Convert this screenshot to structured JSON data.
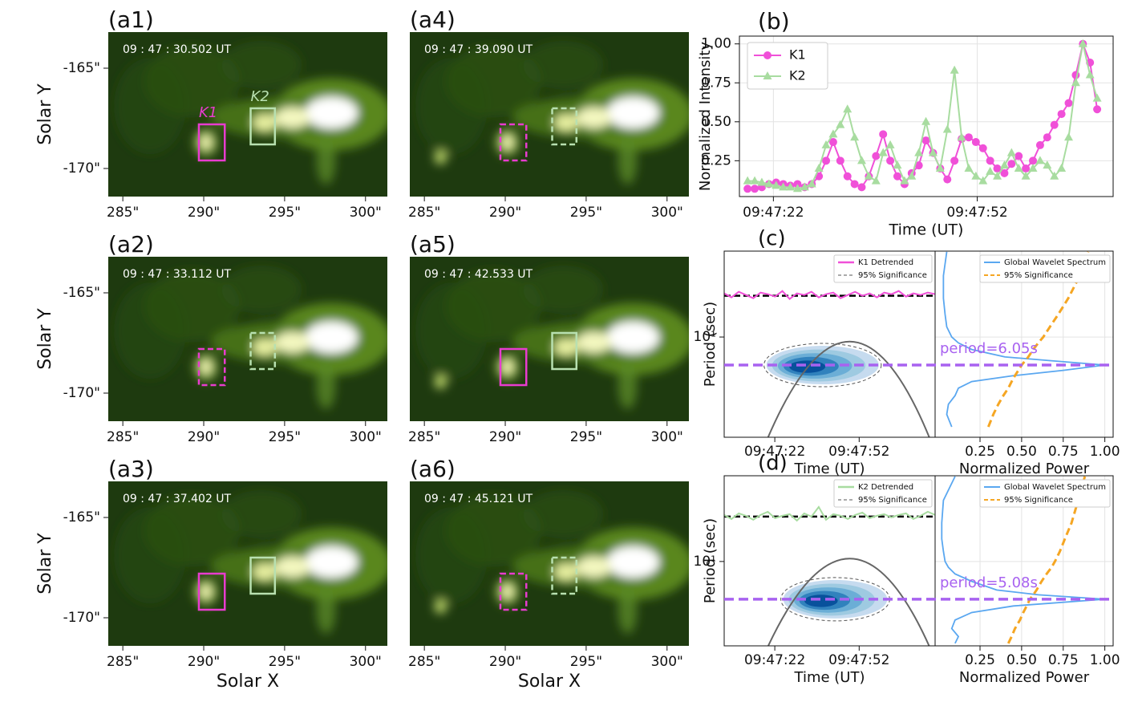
{
  "chart_data": [
    {
      "type": "image",
      "label": "(a1)",
      "time": "09 : 47 : 30.502 UT",
      "ylabel": "Solar Y",
      "xlim": [
        284.1,
        301.35
      ],
      "ylim": [
        -171.4,
        -163.2
      ],
      "xticks": [
        {
          "value": 285,
          "label": "285\""
        },
        {
          "value": 290,
          "label": "290\""
        },
        {
          "value": 295,
          "label": "295\""
        },
        {
          "value": 300,
          "label": "300\""
        }
      ],
      "yticks": [
        {
          "value": -165,
          "label": "-165\""
        },
        {
          "value": -170,
          "label": "-170\""
        }
      ],
      "boxes": [
        {
          "name": "K1",
          "color": "#e83ccf",
          "dashed": false,
          "x": [
            289.7,
            291.3
          ],
          "y": [
            -169.6,
            -167.8
          ]
        },
        {
          "name": "K2",
          "color": "#b8e0b0",
          "dashed": false,
          "x": [
            292.9,
            294.4
          ],
          "y": [
            -168.8,
            -167.0
          ]
        }
      ]
    },
    {
      "type": "image",
      "label": "(a2)",
      "time": "09 : 47 : 33.112 UT",
      "ylabel": "Solar Y",
      "xlim": [
        284.1,
        301.35
      ],
      "ylim": [
        -171.4,
        -163.2
      ],
      "xticks": [
        {
          "value": 285,
          "label": "285\""
        },
        {
          "value": 290,
          "label": "290\""
        },
        {
          "value": 295,
          "label": "295\""
        },
        {
          "value": 300,
          "label": "300\""
        }
      ],
      "yticks": [
        {
          "value": -165,
          "label": "-165\""
        },
        {
          "value": -170,
          "label": "-170\""
        }
      ],
      "boxes": [
        {
          "color": "#e83ccf",
          "dashed": true,
          "x": [
            289.7,
            291.3
          ],
          "y": [
            -169.6,
            -167.8
          ]
        },
        {
          "color": "#b8e0b0",
          "dashed": true,
          "x": [
            292.9,
            294.4
          ],
          "y": [
            -168.8,
            -167.0
          ]
        }
      ]
    },
    {
      "type": "image",
      "label": "(a3)",
      "time": "09 : 47 : 37.402 UT",
      "ylabel": "Solar Y",
      "xlabel": "Solar X",
      "xlim": [
        284.1,
        301.35
      ],
      "ylim": [
        -171.4,
        -163.2
      ],
      "xticks": [
        {
          "value": 285,
          "label": "285\""
        },
        {
          "value": 290,
          "label": "290\""
        },
        {
          "value": 295,
          "label": "295\""
        },
        {
          "value": 300,
          "label": "300\""
        }
      ],
      "yticks": [
        {
          "value": -165,
          "label": "-165\""
        },
        {
          "value": -170,
          "label": "-170\""
        }
      ],
      "boxes": [
        {
          "color": "#e83ccf",
          "dashed": false,
          "x": [
            289.7,
            291.3
          ],
          "y": [
            -169.6,
            -167.8
          ]
        },
        {
          "color": "#b8e0b0",
          "dashed": false,
          "x": [
            292.9,
            294.4
          ],
          "y": [
            -168.8,
            -167.0
          ]
        }
      ]
    },
    {
      "type": "image",
      "label": "(a4)",
      "time": "09 : 47 : 39.090 UT",
      "xlim": [
        284.1,
        301.35
      ],
      "ylim": [
        -171.4,
        -163.2
      ],
      "xticks": [
        {
          "value": 285,
          "label": "285\""
        },
        {
          "value": 290,
          "label": "290\""
        },
        {
          "value": 295,
          "label": "295\""
        },
        {
          "value": 300,
          "label": "300\""
        }
      ],
      "boxes": [
        {
          "color": "#e83ccf",
          "dashed": true,
          "x": [
            289.7,
            291.3
          ],
          "y": [
            -169.6,
            -167.8
          ]
        },
        {
          "color": "#b8e0b0",
          "dashed": true,
          "x": [
            292.9,
            294.4
          ],
          "y": [
            -168.8,
            -167.0
          ]
        }
      ]
    },
    {
      "type": "image",
      "label": "(a5)",
      "time": "09 : 47 : 42.533 UT",
      "xlim": [
        284.1,
        301.35
      ],
      "ylim": [
        -171.4,
        -163.2
      ],
      "xticks": [
        {
          "value": 285,
          "label": "285\""
        },
        {
          "value": 290,
          "label": "290\""
        },
        {
          "value": 295,
          "label": "295\""
        },
        {
          "value": 300,
          "label": "300\""
        }
      ],
      "boxes": [
        {
          "color": "#e83ccf",
          "dashed": false,
          "x": [
            289.7,
            291.3
          ],
          "y": [
            -169.6,
            -167.8
          ]
        },
        {
          "color": "#b8e0b0",
          "dashed": false,
          "x": [
            292.9,
            294.4
          ],
          "y": [
            -168.8,
            -167.0
          ]
        }
      ]
    },
    {
      "type": "image",
      "label": "(a6)",
      "time": "09 : 47 : 45.121 UT",
      "xlabel": "Solar X",
      "xlim": [
        284.1,
        301.35
      ],
      "ylim": [
        -171.4,
        -163.2
      ],
      "xticks": [
        {
          "value": 285,
          "label": "285\""
        },
        {
          "value": 290,
          "label": "290\""
        },
        {
          "value": 295,
          "label": "295\""
        },
        {
          "value": 300,
          "label": "300\""
        }
      ],
      "boxes": [
        {
          "color": "#e83ccf",
          "dashed": true,
          "x": [
            289.7,
            291.3
          ],
          "y": [
            -169.6,
            -167.8
          ]
        },
        {
          "color": "#b8e0b0",
          "dashed": true,
          "x": [
            292.9,
            294.4
          ],
          "y": [
            -168.8,
            -167.0
          ]
        }
      ]
    },
    {
      "type": "line",
      "label": "(b)",
      "ylabel": "Normalized Intensity",
      "xlabel": "Time (UT)",
      "xlim": [
        17,
        72
      ],
      "ylim": [
        0.02,
        1.05
      ],
      "grid": true,
      "legend": "upper left",
      "xticks": [
        {
          "value": 22,
          "label": "09:47:22"
        },
        {
          "value": 52,
          "label": "09:47:52"
        }
      ],
      "yticks": [
        0.25,
        {
          "value": 0.5,
          "label": "0.50"
        },
        0.75,
        {
          "value": 1,
          "label": "1.00"
        }
      ],
      "x": [
        18.2,
        19.25,
        20.3,
        21.35,
        22.4,
        23.45,
        24.5,
        25.55,
        26.6,
        27.65,
        28.7,
        29.75,
        30.8,
        31.85,
        32.9,
        33.95,
        35,
        36.05,
        37.1,
        38.15,
        39.2,
        40.25,
        41.3,
        42.35,
        43.4,
        44.45,
        45.5,
        46.55,
        47.6,
        48.65,
        49.7,
        50.75,
        51.8,
        52.85,
        53.9,
        54.95,
        56,
        57.05,
        58.1,
        59.15,
        60.2,
        61.25,
        62.3,
        63.35,
        64.4,
        65.45,
        66.5,
        67.55,
        68.6,
        69.65
      ],
      "series": [
        {
          "name": "K1",
          "color": "#f050d8",
          "marker": "circle",
          "values": [
            0.07,
            0.07,
            0.08,
            0.1,
            0.11,
            0.1,
            0.09,
            0.1,
            0.08,
            0.1,
            0.15,
            0.25,
            0.37,
            0.25,
            0.15,
            0.1,
            0.08,
            0.15,
            0.28,
            0.42,
            0.25,
            0.15,
            0.1,
            0.17,
            0.22,
            0.38,
            0.3,
            0.2,
            0.13,
            0.25,
            0.39,
            0.4,
            0.37,
            0.33,
            0.25,
            0.2,
            0.17,
            0.23,
            0.28,
            0.2,
            0.25,
            0.35,
            0.4,
            0.48,
            0.55,
            0.62,
            0.8,
            1.0,
            0.88,
            0.58
          ]
        },
        {
          "name": "K2",
          "color": "#a8dca0",
          "marker": "triangle",
          "values": [
            0.12,
            0.12,
            0.11,
            0.1,
            0.09,
            0.08,
            0.08,
            0.07,
            0.08,
            0.1,
            0.2,
            0.35,
            0.42,
            0.48,
            0.58,
            0.4,
            0.25,
            0.15,
            0.12,
            0.3,
            0.35,
            0.22,
            0.12,
            0.15,
            0.3,
            0.5,
            0.3,
            0.2,
            0.45,
            0.83,
            0.4,
            0.2,
            0.15,
            0.12,
            0.18,
            0.15,
            0.22,
            0.3,
            0.2,
            0.15,
            0.2,
            0.25,
            0.22,
            0.15,
            0.2,
            0.4,
            0.75,
            1.0,
            0.8,
            0.65
          ]
        }
      ]
    },
    {
      "type": "wavelet",
      "label": "(c)",
      "ylabel": "Period (sec)",
      "xlabel": "Time (UT)",
      "log_y": true,
      "xlim": [
        4,
        79
      ],
      "ylim": [
        1.66,
        46.6
      ],
      "xticks": [
        {
          "value": 22,
          "label": "09:47:22"
        },
        {
          "value": 52,
          "label": "09:47:52"
        }
      ],
      "yticks": [
        {
          "value": 10,
          "label": "10¹"
        }
      ],
      "signal": {
        "name": "K1 Detrended",
        "color": "#f050d8",
        "values": [
          0.3,
          -0.2,
          0.5,
          0.1,
          -0.3,
          0.4,
          0.2,
          -0.1,
          0.6,
          -0.4,
          0.3,
          0.1,
          0.5,
          -0.2,
          0.2,
          0.4,
          -0.3,
          0.1,
          0.5,
          0.0,
          0.3,
          -0.2,
          0.4,
          0.2,
          0.6,
          -0.1,
          0.3,
          0.1,
          0.4,
          0.2
        ]
      },
      "significance_label": "95% Significance",
      "contour_x": [
        19,
        59
      ],
      "period": 6.05,
      "period_label": "period=6.05s",
      "spectrum": {
        "xlabel": "Normalized Power",
        "xlim": [
          -0.02,
          1.05
        ],
        "xticks": [
          0.25,
          {
            "value": 0.5,
            "label": "0.50"
          },
          0.75,
          {
            "value": 1,
            "label": "1.00"
          }
        ],
        "periods": [
          2,
          2.5,
          3,
          3.5,
          4,
          4.5,
          5,
          5.5,
          6.05,
          6.5,
          7,
          8,
          9,
          10,
          12,
          15,
          20,
          30,
          46
        ],
        "series": [
          {
            "name": "Global Wavelet Spectrum",
            "color": "#5aa7f0",
            "values": [
              0.08,
              0.05,
              0.06,
              0.1,
              0.12,
              0.2,
              0.45,
              0.75,
              1.0,
              0.7,
              0.4,
              0.2,
              0.12,
              0.08,
              0.05,
              0.04,
              0.03,
              0.03,
              0.05
            ]
          },
          {
            "name": "95% Significance",
            "color": "#f5a623",
            "dashed": true,
            "values": [
              0.3,
              0.33,
              0.36,
              0.39,
              0.42,
              0.44,
              0.46,
              0.48,
              0.5,
              0.52,
              0.54,
              0.57,
              0.6,
              0.63,
              0.67,
              0.72,
              0.78,
              0.85,
              0.9
            ]
          }
        ]
      }
    },
    {
      "type": "wavelet",
      "label": "(d)",
      "ylabel": "Period (sec)",
      "xlabel": "Time (UT)",
      "log_y": true,
      "xlim": [
        4,
        79
      ],
      "ylim": [
        2.2,
        46.6
      ],
      "xticks": [
        {
          "value": 22,
          "label": "09:47:22"
        },
        {
          "value": 52,
          "label": "09:47:52"
        }
      ],
      "yticks": [
        {
          "value": 10,
          "label": "10¹"
        }
      ],
      "signal": {
        "name": "K2 Detrended",
        "color": "#a8dca0",
        "values": [
          0.2,
          -0.3,
          0.4,
          0.1,
          -0.4,
          0.2,
          0.6,
          -0.2,
          0.1,
          0.3,
          -0.5,
          0.4,
          0.0,
          1.2,
          -0.4,
          0.3,
          0.1,
          -0.3,
          0.2,
          0.5,
          -0.2,
          0.1,
          0.3,
          -0.1,
          0.2,
          0.4,
          -0.3,
          0.1,
          0.6,
          0.2
        ]
      },
      "significance_label": "95% Significance",
      "contour_x": [
        25,
        62
      ],
      "period": 5.08,
      "period_label": "period=5.08s",
      "spectrum": {
        "xlabel": "Normalized Power",
        "xlim": [
          -0.02,
          1.05
        ],
        "xticks": [
          0.25,
          {
            "value": 0.5,
            "label": "0.50"
          },
          0.75,
          {
            "value": 1,
            "label": "1.00"
          }
        ],
        "periods": [
          2.3,
          2.6,
          3,
          3.5,
          4,
          4.5,
          5.08,
          5.5,
          6,
          7,
          8,
          9,
          10,
          12,
          15,
          20,
          30,
          46
        ],
        "series": [
          {
            "name": "Global Wavelet Spectrum",
            "color": "#5aa7f0",
            "values": [
              0.1,
              0.12,
              0.08,
              0.1,
              0.2,
              0.45,
              1.0,
              0.6,
              0.35,
              0.2,
              0.1,
              0.06,
              0.04,
              0.03,
              0.02,
              0.02,
              0.03,
              0.1
            ]
          },
          {
            "name": "95% Significance",
            "color": "#f5a623",
            "dashed": true,
            "values": [
              0.42,
              0.44,
              0.46,
              0.49,
              0.51,
              0.53,
              0.55,
              0.57,
              0.59,
              0.62,
              0.65,
              0.68,
              0.7,
              0.73,
              0.76,
              0.8,
              0.84,
              0.88
            ]
          }
        ]
      }
    }
  ]
}
